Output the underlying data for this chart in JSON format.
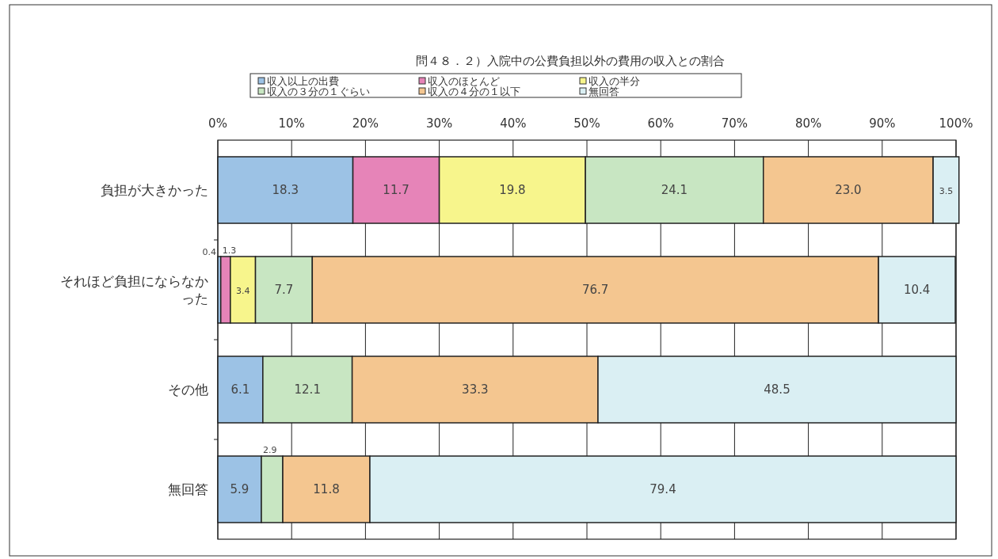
{
  "chart_data": {
    "type": "bar",
    "orientation": "horizontal",
    "stacked": true,
    "title": "問４８．２）入院中の公費負担以外の費用の収入との割合",
    "categories": [
      "負担が大きかった",
      "それほど負担にならなかった",
      "その他",
      "無回答"
    ],
    "series": [
      {
        "name": "収入以上の出費",
        "color": "#9cc2e5",
        "values": [
          18.3,
          0.4,
          6.1,
          5.9
        ],
        "value_labels": [
          "18.3",
          "0.4",
          "6.1",
          "5.9"
        ]
      },
      {
        "name": "収入のほとんど",
        "color": "#e684b8",
        "values": [
          11.7,
          1.3,
          null,
          null
        ],
        "value_labels": [
          "11.7",
          "1.3",
          null,
          null
        ]
      },
      {
        "name": "収入の半分",
        "color": "#f7f58c",
        "values": [
          19.8,
          3.4,
          null,
          null
        ],
        "value_labels": [
          "19.8",
          "3.4",
          null,
          null
        ]
      },
      {
        "name": "収入の３分の１ぐらい",
        "color": "#c8e6c2",
        "values": [
          24.1,
          7.7,
          12.1,
          2.9
        ],
        "value_labels": [
          "24.1",
          "7.7",
          "12.1",
          "2.9"
        ]
      },
      {
        "name": "収入の４分の１以下",
        "color": "#f4c690",
        "values": [
          23.0,
          76.7,
          33.3,
          11.8
        ],
        "value_labels": [
          "23.0",
          "76.7",
          "33.3",
          "11.8"
        ]
      },
      {
        "name": "無回答",
        "color": "#daeff3",
        "values": [
          3.5,
          10.4,
          48.5,
          79.4
        ],
        "value_labels": [
          "3.5",
          "10.4",
          "48.5",
          "79.4"
        ]
      }
    ],
    "xlim": [
      0,
      100
    ],
    "xticks": [
      {
        "value": 0,
        "label": "0%"
      },
      {
        "value": 10,
        "label": "10%"
      },
      {
        "value": 20,
        "label": "20%"
      },
      {
        "value": 30,
        "label": "30%"
      },
      {
        "value": 40,
        "label": "40%"
      },
      {
        "value": 50,
        "label": "50%"
      },
      {
        "value": 60,
        "label": "60%"
      },
      {
        "value": 70,
        "label": "70%"
      },
      {
        "value": 80,
        "label": "80%"
      },
      {
        "value": 90,
        "label": "90%"
      },
      {
        "value": 100,
        "label": "100%"
      }
    ],
    "grid": "x",
    "legend": "top"
  }
}
